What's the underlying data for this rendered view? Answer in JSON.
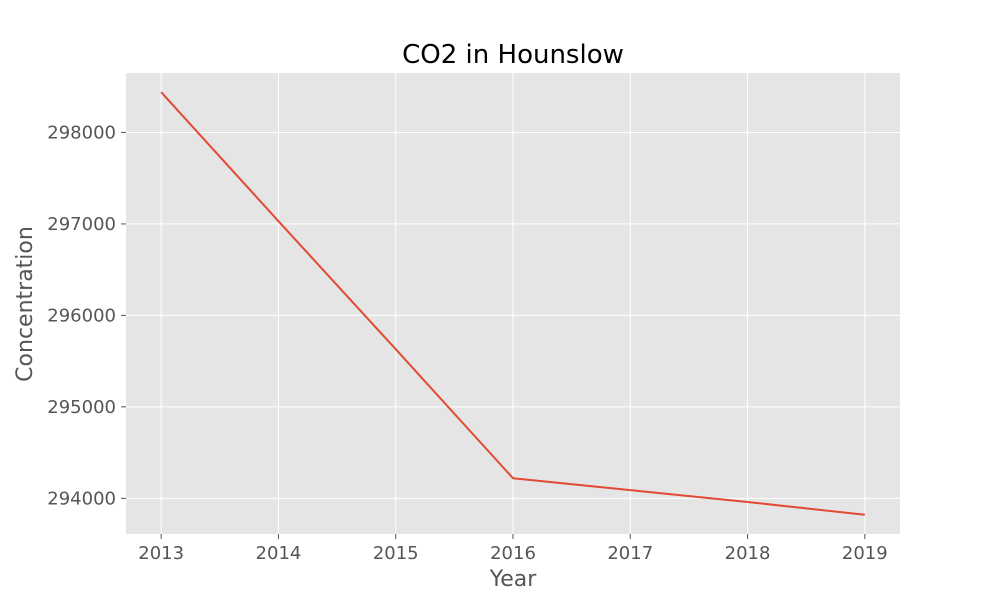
{
  "chart_data": {
    "type": "line",
    "title": "CO2 in Hounslow",
    "xlabel": "Year",
    "ylabel": "Concentration",
    "x": [
      2013,
      2014,
      2015,
      2016,
      2017,
      2018,
      2019
    ],
    "series": [
      {
        "values": [
          298440,
          297030,
          295630,
          294220,
          294090,
          293960,
          293820
        ],
        "color": "#e24a33"
      }
    ],
    "xlim": [
      2012.7,
      2019.3
    ],
    "ylim": [
      293610,
      298650
    ],
    "xticks": [
      2013,
      2014,
      2015,
      2016,
      2017,
      2018,
      2019
    ],
    "yticks": [
      294000,
      295000,
      296000,
      297000,
      298000
    ],
    "grid": true,
    "plot_background": "#e5e5e5",
    "grid_color": "#ffffff"
  }
}
